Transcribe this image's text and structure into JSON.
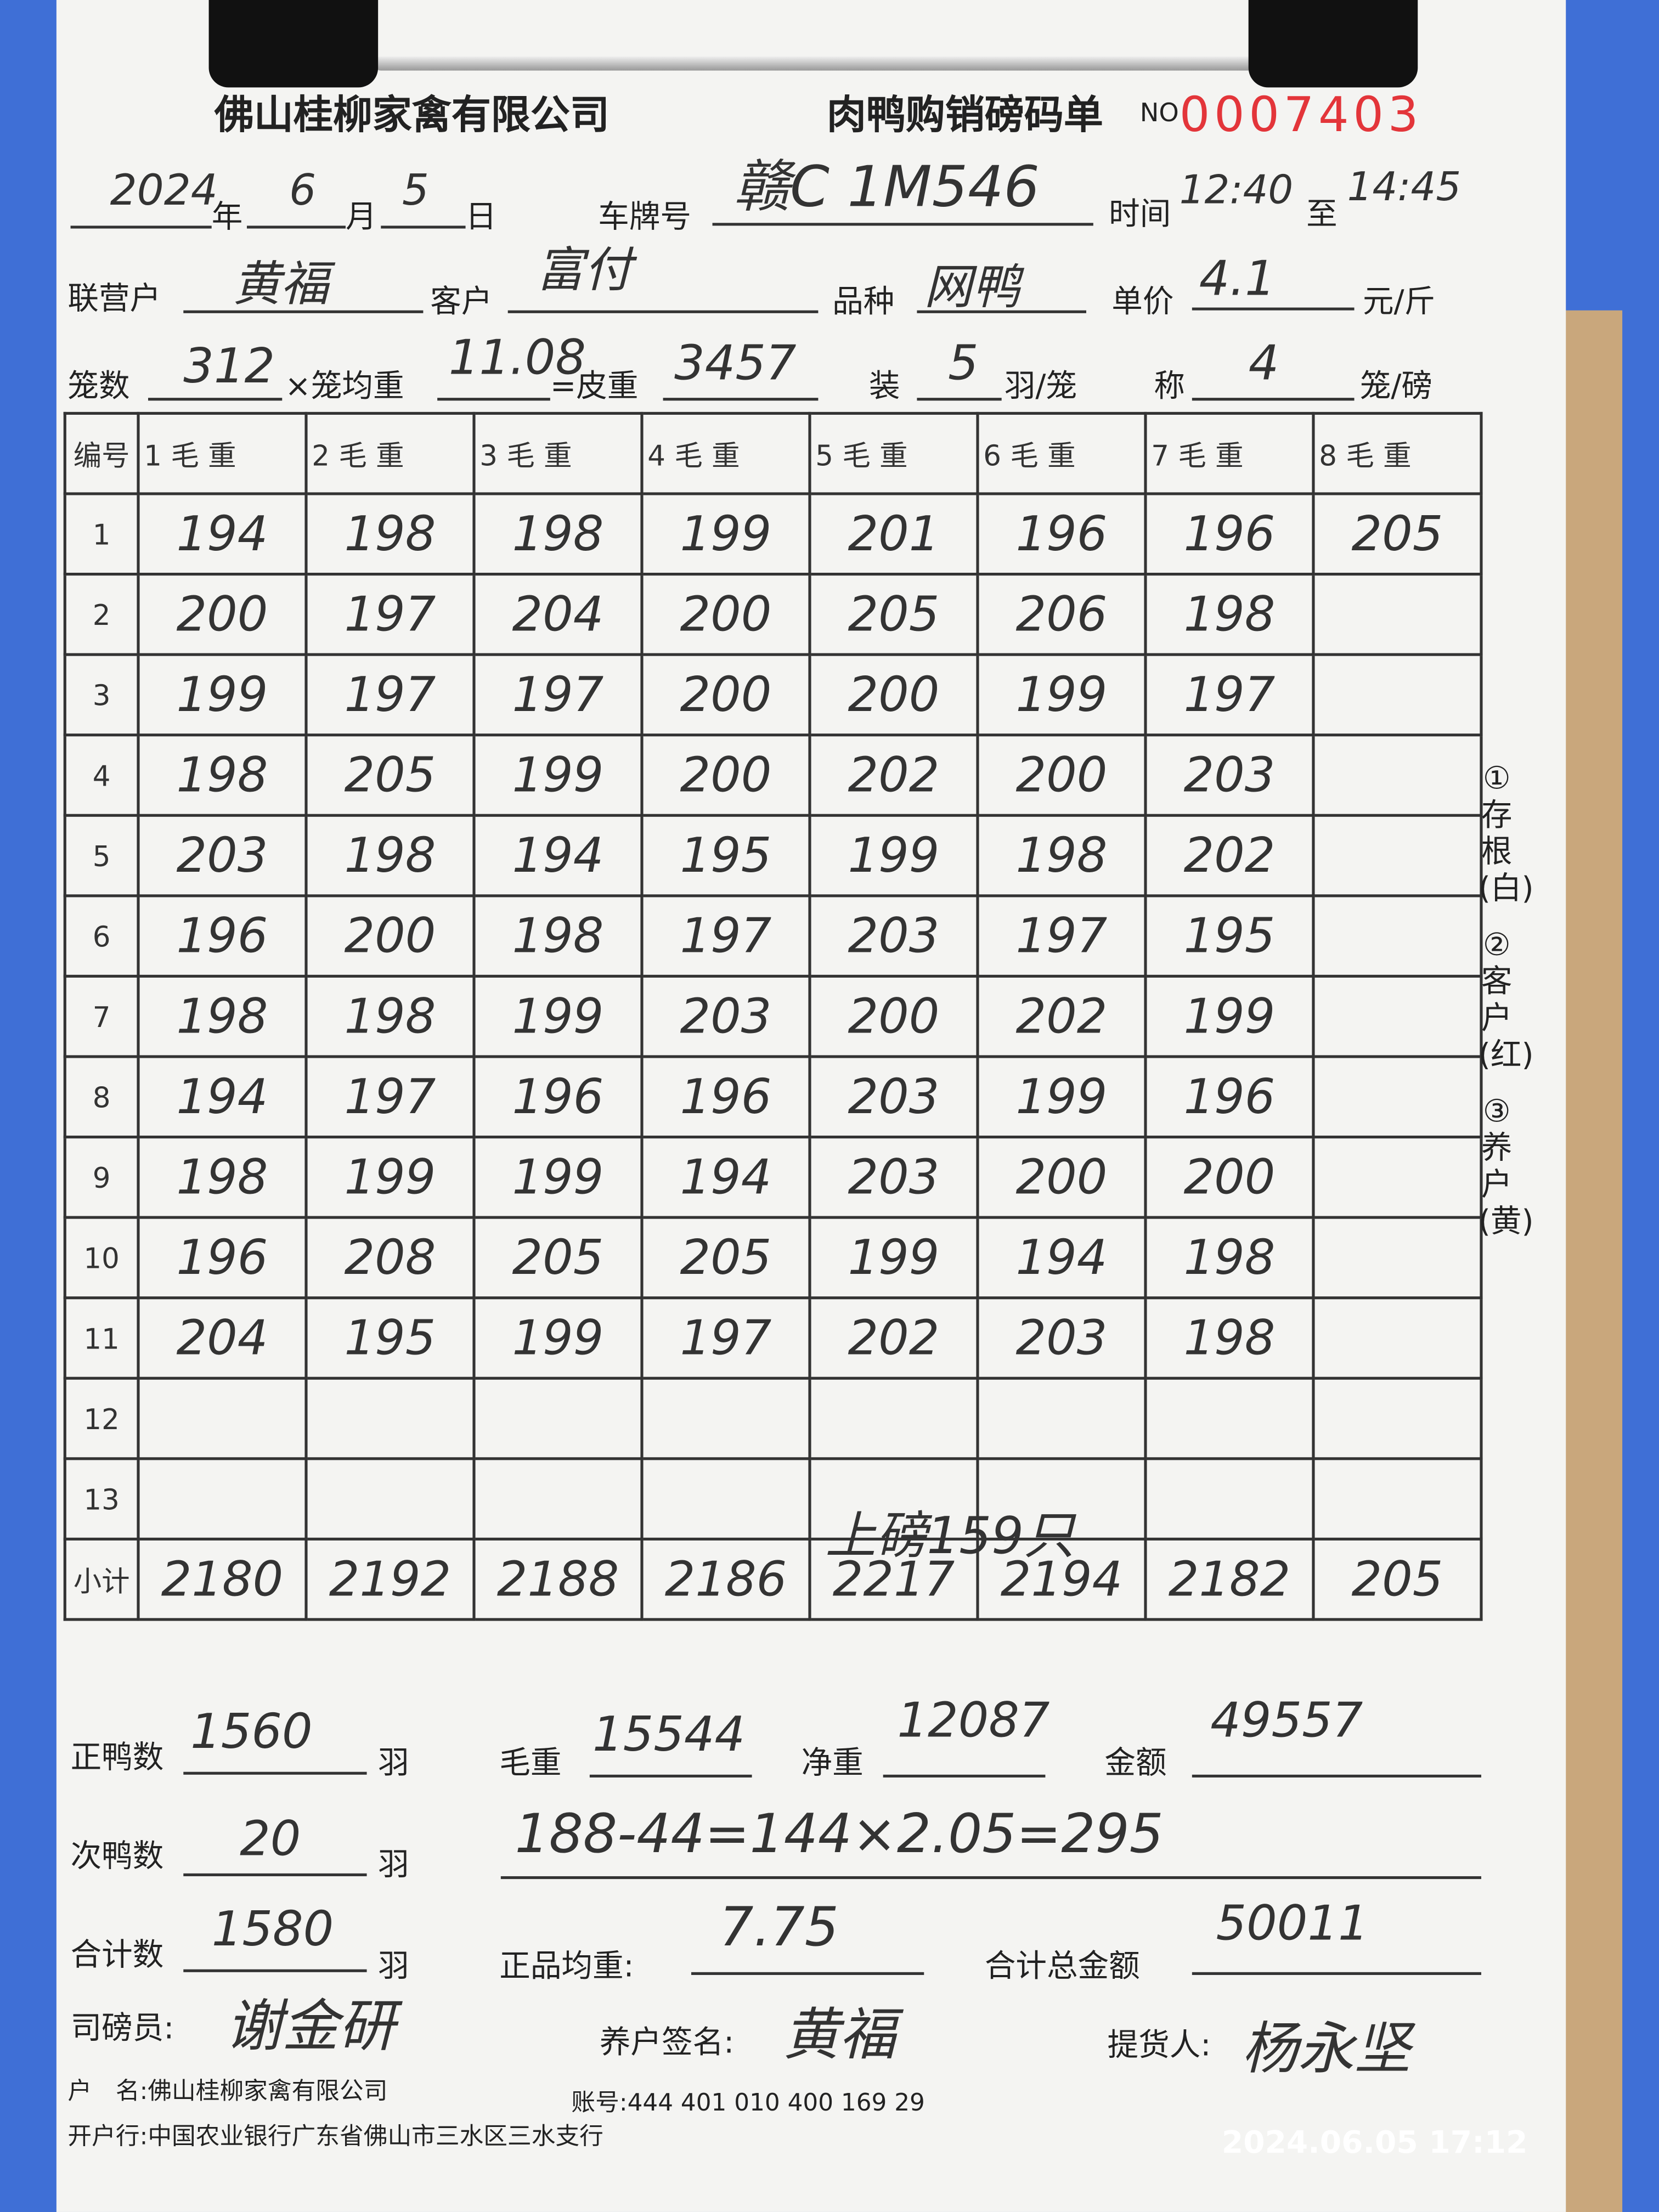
{
  "header": {
    "company": "佛山桂柳家禽有限公司",
    "form_title": "肉鸭购销磅码单",
    "no_label": "NO",
    "serial": "0007403"
  },
  "fields": {
    "year": "2024",
    "year_label": "年",
    "month": "6",
    "month_label": "月",
    "day": "5",
    "day_label": "日",
    "plate_label": "车牌号",
    "plate": "赣C 1M546",
    "time_label": "时间",
    "time_from": "12:40",
    "time_to_label": "至",
    "time_to": "14:45",
    "partner_label": "联营户",
    "partner": "黄福",
    "customer_label": "客户",
    "customer": "富付",
    "breed_label": "品种",
    "breed": "网鸭",
    "price_label": "单价",
    "price": "4.1",
    "price_unit": "元/斤",
    "cages_label": "笼数",
    "cages": "312",
    "cage_avg_label": "×笼均重",
    "cage_avg": "11.08",
    "tare_label": "=皮重",
    "tare": "3457",
    "load_label": "装",
    "load": "5",
    "load_unit": "羽/笼",
    "scale_label": "称",
    "scale": "4",
    "scale_unit": "笼/磅"
  },
  "table": {
    "no_header": "编号",
    "columns": [
      "1 毛 重",
      "2 毛 重",
      "3 毛 重",
      "4 毛 重",
      "5 毛 重",
      "6 毛 重",
      "7 毛 重",
      "8 毛 重"
    ],
    "rows": [
      {
        "no": "1",
        "values": [
          "194",
          "198",
          "198",
          "199",
          "201",
          "196",
          "196",
          "205"
        ]
      },
      {
        "no": "2",
        "values": [
          "200",
          "197",
          "204",
          "200",
          "205",
          "206",
          "198",
          ""
        ]
      },
      {
        "no": "3",
        "values": [
          "199",
          "197",
          "197",
          "200",
          "200",
          "199",
          "197",
          ""
        ]
      },
      {
        "no": "4",
        "values": [
          "198",
          "205",
          "199",
          "200",
          "202",
          "200",
          "203",
          ""
        ]
      },
      {
        "no": "5",
        "values": [
          "203",
          "198",
          "194",
          "195",
          "199",
          "198",
          "202",
          ""
        ]
      },
      {
        "no": "6",
        "values": [
          "196",
          "200",
          "198",
          "197",
          "203",
          "197",
          "195",
          ""
        ]
      },
      {
        "no": "7",
        "values": [
          "198",
          "198",
          "199",
          "203",
          "200",
          "202",
          "199",
          ""
        ]
      },
      {
        "no": "8",
        "values": [
          "194",
          "197",
          "196",
          "196",
          "203",
          "199",
          "196",
          ""
        ]
      },
      {
        "no": "9",
        "values": [
          "198",
          "199",
          "199",
          "194",
          "203",
          "200",
          "200",
          ""
        ]
      },
      {
        "no": "10",
        "values": [
          "196",
          "208",
          "205",
          "205",
          "199",
          "194",
          "198",
          ""
        ]
      },
      {
        "no": "11",
        "values": [
          "204",
          "195",
          "199",
          "197",
          "202",
          "203",
          "198",
          ""
        ]
      },
      {
        "no": "12",
        "values": [
          "",
          "",
          "",
          "",
          "",
          "",
          "",
          ""
        ]
      },
      {
        "no": "13",
        "values": [
          "",
          "",
          "",
          "",
          "",
          "",
          "",
          ""
        ]
      }
    ],
    "row13_note": "上磅159只",
    "subtotal_label": "小计",
    "subtotals": [
      "2180",
      "2192",
      "2188",
      "2186",
      "2217",
      "2194",
      "2182",
      "205"
    ]
  },
  "side_note": [
    "①存根(白)",
    "②客户(红)",
    "③养户(黄)"
  ],
  "summary": {
    "good_label": "正鸭数",
    "good": "1560",
    "good_unit": "羽",
    "gross_label": "毛重",
    "gross": "15544",
    "net_label": "净重",
    "net": "12087",
    "amount_label": "金额",
    "amount": "49557",
    "second_label": "次鸭数",
    "second": "20",
    "second_unit": "羽",
    "calc": "188-44=144×2.05=295",
    "total_label": "合计数",
    "total": "1580",
    "total_unit": "羽",
    "avg_label": "正品均重:",
    "avg": "7.75",
    "grand_label": "合计总金额",
    "grand": "50011",
    "weigher_label": "司磅员:",
    "weigher": "谢金研",
    "farmer_label": "养户签名:",
    "farmer": "黄福",
    "pickup_label": "提货人:",
    "pickup": "杨永坚"
  },
  "bank": {
    "name_label": "户　名:",
    "name": "佛山桂柳家禽有限公司",
    "account_label": "账号:",
    "account": "444 401 010 400 169 29",
    "bank_label": "开户行:",
    "bank": "中国农业银行广东省佛山市三水区三水支行"
  },
  "photo_timestamp": "2024.06.05 17:12"
}
